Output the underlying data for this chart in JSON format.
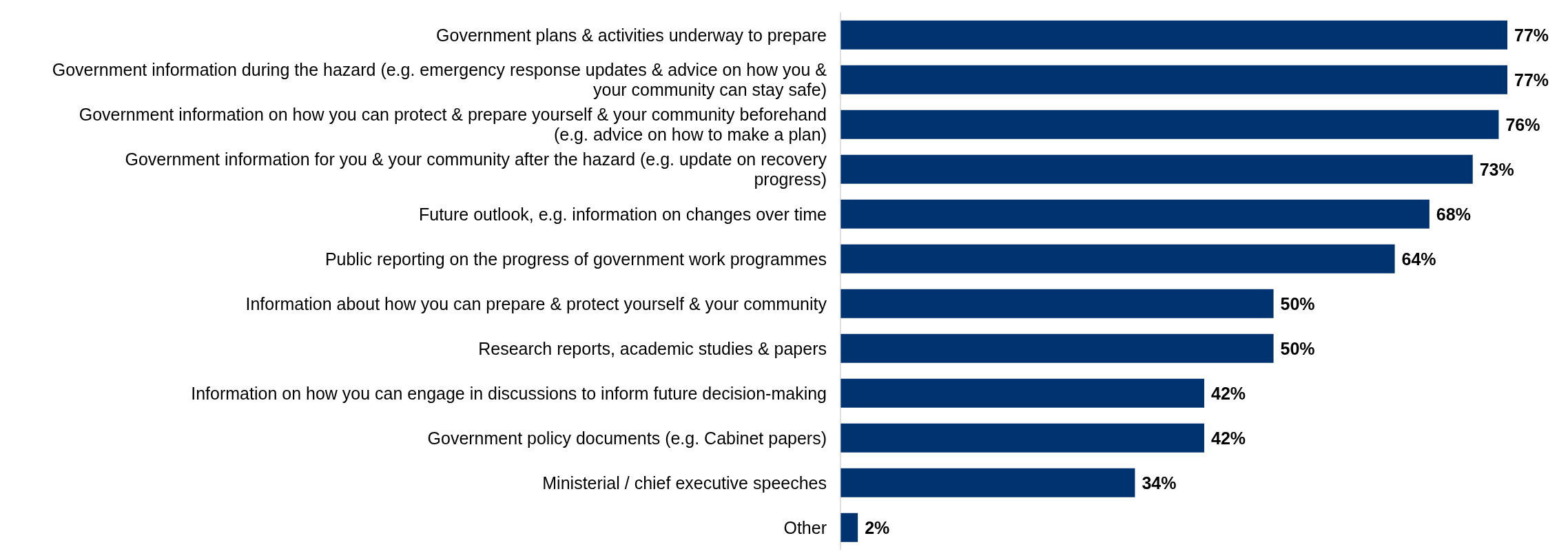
{
  "chart_data": {
    "type": "bar",
    "orientation": "horizontal",
    "categories": [
      "Government plans & activities underway to prepare",
      "Government information during the hazard (e.g. emergency response updates & advice on how you & your community can stay safe)",
      "Government information on how you can protect & prepare yourself & your community beforehand (e.g. advice on how to make a plan)",
      "Government information for you & your community after the hazard (e.g. update on recovery progress)",
      "Future outlook, e.g. information on changes over time",
      "Public reporting on the progress of government work programmes",
      "Information about how you can prepare & protect yourself & your community",
      "Research reports, academic studies & papers",
      "Information on how you can engage in discussions to inform future decision-making",
      "Government policy documents (e.g. Cabinet papers)",
      "Ministerial / chief executive speeches",
      "Other"
    ],
    "values": [
      77,
      77,
      76,
      73,
      68,
      64,
      50,
      50,
      42,
      42,
      34,
      2
    ],
    "value_labels": [
      "77%",
      "77%",
      "76%",
      "73%",
      "68%",
      "64%",
      "50%",
      "50%",
      "42%",
      "42%",
      "34%",
      "2%"
    ],
    "color": "#00336f"
  }
}
